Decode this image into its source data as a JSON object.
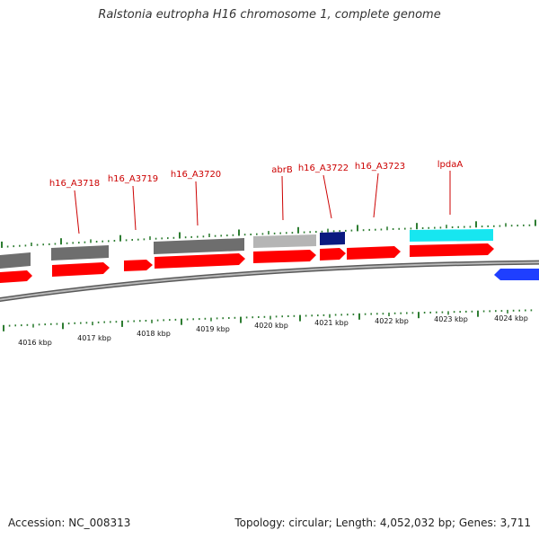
{
  "title": "Ralstonia eutropha H16 chromosome 1, complete genome",
  "footer": {
    "accession": "Accession: NC_008313",
    "summary": "Topology: circular; Length: 4,052,032 bp; Genes: 3,711"
  },
  "colors": {
    "gene_label": "#cc0000",
    "tick": "#2e7d32",
    "forward_cds": "#ff0000",
    "reverse_cds": "#1f3fff",
    "gray_feature": "#6e6e6e",
    "light_gray_feature": "#b5b5b5",
    "navy_feature": "#0a1a80",
    "cyan_feature": "#17e6f0",
    "backbone": "#8a8a8a"
  },
  "gene_labels": [
    "h16_A3718",
    "h16_A3719",
    "h16_A3720",
    "abrB",
    "h16_A3722",
    "h16_A3723",
    "lpdaA"
  ],
  "kbp_labels": [
    "4016 kbp",
    "4017 kbp",
    "4018 kbp",
    "4019 kbp",
    "4020 kbp",
    "4021 kbp",
    "4022 kbp",
    "4023 kbp",
    "4024 kbp"
  ]
}
